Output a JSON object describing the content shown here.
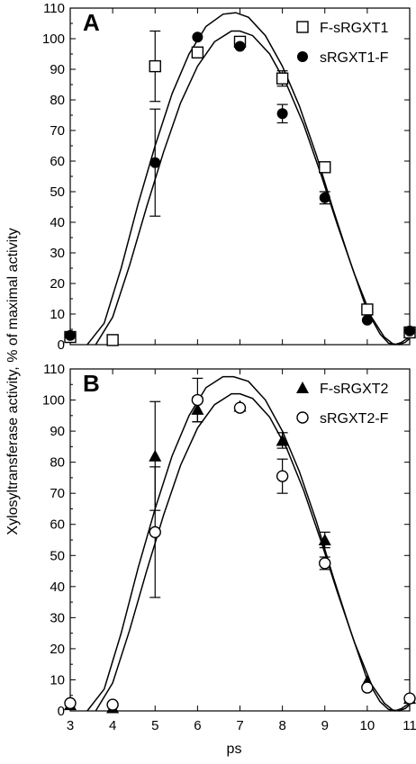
{
  "chart_data": {
    "type": "scatter",
    "ylabel": "Xylosyltransferase activity, % of maximal activity",
    "xlabel": "ps",
    "x_ticks": [
      3,
      4,
      5,
      6,
      7,
      8,
      9,
      10,
      11
    ],
    "y_ticks": [
      0,
      10,
      20,
      30,
      40,
      50,
      60,
      70,
      80,
      90,
      100,
      110
    ],
    "xlim": [
      3,
      11
    ],
    "ylim": [
      0,
      110
    ],
    "grid": false,
    "panels": [
      {
        "label": "A",
        "legend_position": "top-right",
        "series": [
          {
            "name": "F-sRGXT1",
            "marker": "open-square",
            "x": [
              3,
              4,
              5,
              6,
              7,
              8,
              9,
              10,
              11
            ],
            "y": [
              2.5,
              1.5,
              91,
              95.5,
              99,
              87,
              58,
              11.5,
              4
            ],
            "yerr": [
              0,
              0,
              11.5,
              0,
              0,
              2.5,
              0,
              0,
              0
            ]
          },
          {
            "name": "sRGXT1-F",
            "marker": "filled-circle",
            "x": [
              3,
              5,
              6,
              7,
              8,
              9,
              10,
              11
            ],
            "y": [
              3,
              59.5,
              100.5,
              97.5,
              75.5,
              48,
              8,
              4.5
            ],
            "yerr": [
              0,
              17.5,
              0,
              0,
              3,
              2,
              0,
              0
            ]
          }
        ],
        "fits": [
          {
            "x": [
              3.4,
              3.8,
              4.2,
              4.6,
              5.0,
              5.4,
              5.8,
              6.2,
              6.6,
              6.9,
              7.2,
              7.6,
              8.0,
              8.4,
              8.8,
              9.2,
              9.6,
              10.0,
              10.3,
              10.5,
              10.65,
              10.8,
              11.0
            ],
            "y": [
              0,
              7,
              25,
              46,
              65,
              82,
              95,
              104,
              108,
              108.5,
              107,
              101,
              91,
              78,
              62,
              44,
              27,
              11,
              3.5,
              0.5,
              0,
              0.7,
              2.5
            ]
          },
          {
            "x": [
              3.6,
              4.0,
              4.4,
              4.8,
              5.2,
              5.6,
              6.0,
              6.4,
              6.8,
              7.0,
              7.3,
              7.7,
              8.1,
              8.5,
              8.9,
              9.3,
              9.7,
              10.1,
              10.4,
              10.6,
              10.75,
              10.9,
              11.0
            ],
            "y": [
              0,
              9,
              26,
              45,
              63,
              79,
              91,
              99,
              102.5,
              102.5,
              101,
              95,
              85,
              72,
              56,
              39,
              23,
              9,
              2.5,
              0.3,
              0,
              0.8,
              2
            ]
          }
        ]
      },
      {
        "label": "B",
        "legend_position": "top-right",
        "series": [
          {
            "name": "F-sRGXT2",
            "marker": "filled-triangle",
            "x": [
              3,
              4,
              5,
              6,
              7,
              8,
              9,
              10,
              11
            ],
            "y": [
              2,
              1,
              82,
              97,
              98,
              87,
              55,
              9.5,
              4
            ],
            "yerr": [
              0,
              0,
              17.5,
              4,
              0,
              2.5,
              2.5,
              0,
              0
            ]
          },
          {
            "name": "sRGXT2-F",
            "marker": "open-circle",
            "x": [
              3,
              4,
              5,
              6,
              7,
              8,
              9,
              10,
              11
            ],
            "y": [
              2.5,
              2,
              57.5,
              100,
              97.5,
              75.5,
              47.5,
              7.5,
              4
            ],
            "yerr": [
              0,
              0,
              21,
              7,
              0,
              5.5,
              2,
              0,
              0
            ]
          }
        ],
        "fits": [
          {
            "x": [
              3.4,
              3.8,
              4.2,
              4.6,
              5.0,
              5.4,
              5.8,
              6.2,
              6.6,
              6.85,
              7.2,
              7.6,
              8.0,
              8.4,
              8.8,
              9.2,
              9.6,
              10.0,
              10.3,
              10.5,
              10.65,
              10.8,
              11.0
            ],
            "y": [
              0,
              7,
              25,
              46,
              65,
              82,
              95,
              104,
              107.5,
              107.5,
              106,
              100,
              90,
              77,
              61,
              43,
              26,
              10,
              3,
              0.5,
              0,
              0.7,
              2.5
            ]
          },
          {
            "x": [
              3.6,
              4.0,
              4.4,
              4.8,
              5.2,
              5.6,
              6.0,
              6.4,
              6.8,
              7.0,
              7.3,
              7.7,
              8.1,
              8.5,
              8.9,
              9.3,
              9.7,
              10.1,
              10.4,
              10.6,
              10.75,
              10.9,
              11.0
            ],
            "y": [
              0,
              9,
              26,
              45,
              63,
              79,
              91,
              98.5,
              102,
              102,
              100.5,
              94.5,
              84.5,
              71,
              55,
              38,
              22,
              8.5,
              2.5,
              0.3,
              0,
              0.8,
              2
            ]
          }
        ]
      }
    ]
  }
}
